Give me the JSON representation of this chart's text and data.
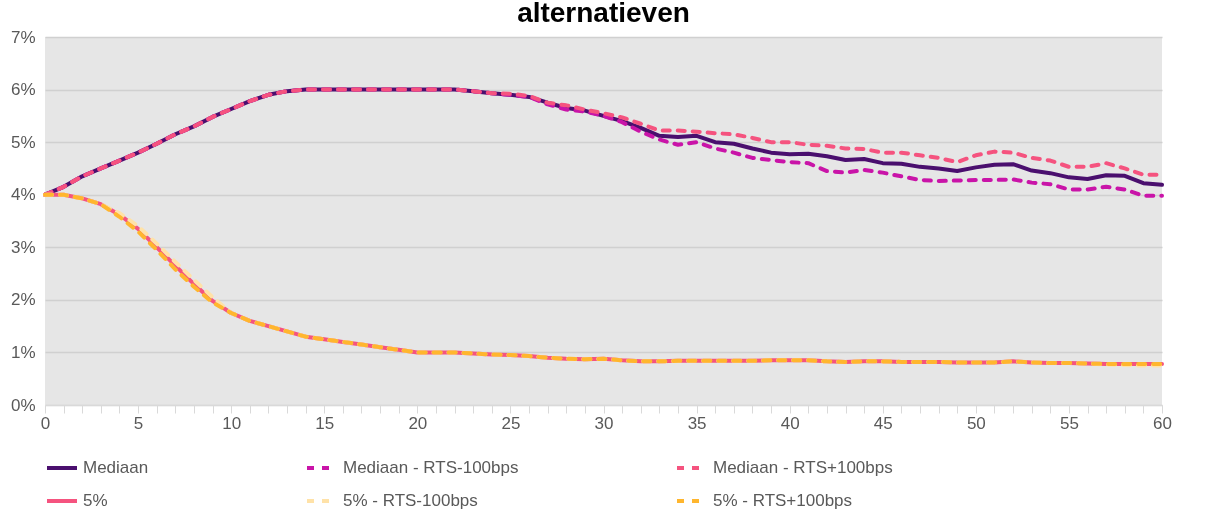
{
  "chart_data": {
    "type": "line",
    "title": "alternatieven",
    "x": [
      0,
      1,
      2,
      3,
      4,
      5,
      6,
      7,
      8,
      9,
      10,
      11,
      12,
      13,
      14,
      15,
      16,
      17,
      18,
      19,
      20,
      21,
      22,
      23,
      24,
      25,
      26,
      27,
      28,
      29,
      30,
      31,
      32,
      33,
      34,
      35,
      36,
      37,
      38,
      39,
      40,
      41,
      42,
      43,
      44,
      45,
      46,
      47,
      48,
      49,
      50,
      51,
      52,
      53,
      54,
      55,
      56,
      57,
      58,
      59,
      60
    ],
    "series": [
      {
        "name": "Mediaan",
        "color": "#4a0f6e",
        "line_style": "solid",
        "values": [
          4.0,
          4.15,
          4.35,
          4.5,
          4.65,
          4.8,
          4.97,
          5.15,
          5.3,
          5.48,
          5.63,
          5.78,
          5.9,
          5.97,
          6.0,
          6.0,
          6.0,
          6.0,
          6.0,
          6.0,
          6.0,
          6.0,
          6.0,
          5.97,
          5.93,
          5.9,
          5.86,
          5.75,
          5.65,
          5.6,
          5.5,
          5.4,
          5.27,
          5.12,
          5.1,
          5.12,
          5.0,
          4.97,
          4.88,
          4.8,
          4.77,
          4.78,
          4.73,
          4.66,
          4.68,
          4.6,
          4.59,
          4.53,
          4.5,
          4.45,
          4.52,
          4.57,
          4.58,
          4.46,
          4.41,
          4.33,
          4.3,
          4.37,
          4.36,
          4.22,
          4.19
        ]
      },
      {
        "name": "Mediaan - RTS-100bps",
        "color": "#c914a8",
        "line_style": "dashed",
        "values": [
          4.0,
          4.15,
          4.35,
          4.5,
          4.65,
          4.8,
          4.97,
          5.15,
          5.3,
          5.48,
          5.63,
          5.78,
          5.9,
          5.97,
          6.0,
          6.0,
          6.0,
          6.0,
          6.0,
          6.0,
          6.0,
          6.0,
          6.0,
          5.97,
          5.93,
          5.9,
          5.86,
          5.72,
          5.62,
          5.58,
          5.5,
          5.38,
          5.2,
          5.05,
          4.95,
          5.0,
          4.88,
          4.8,
          4.7,
          4.66,
          4.62,
          4.6,
          4.45,
          4.42,
          4.47,
          4.42,
          4.35,
          4.28,
          4.26,
          4.27,
          4.28,
          4.28,
          4.29,
          4.23,
          4.2,
          4.1,
          4.1,
          4.15,
          4.1,
          3.98,
          3.98
        ]
      },
      {
        "name": "Mediaan - RTS+100bps",
        "color": "#f5537f",
        "line_style": "dashed",
        "values": [
          4.0,
          4.15,
          4.35,
          4.5,
          4.65,
          4.8,
          4.97,
          5.15,
          5.3,
          5.48,
          5.63,
          5.78,
          5.9,
          5.97,
          6.0,
          6.0,
          6.0,
          6.0,
          6.0,
          6.0,
          6.0,
          6.0,
          6.0,
          5.97,
          5.93,
          5.92,
          5.88,
          5.75,
          5.7,
          5.62,
          5.55,
          5.47,
          5.35,
          5.22,
          5.22,
          5.2,
          5.17,
          5.15,
          5.08,
          5.0,
          5.0,
          4.95,
          4.93,
          4.88,
          4.87,
          4.8,
          4.8,
          4.75,
          4.7,
          4.62,
          4.75,
          4.82,
          4.8,
          4.7,
          4.65,
          4.53,
          4.53,
          4.6,
          4.5,
          4.38,
          4.38
        ]
      },
      {
        "name": "5%",
        "color": "#f5537f",
        "line_style": "solid",
        "values": [
          4.0,
          4.0,
          3.93,
          3.82,
          3.62,
          3.35,
          3.0,
          2.65,
          2.3,
          1.98,
          1.75,
          1.6,
          1.5,
          1.4,
          1.3,
          1.25,
          1.2,
          1.15,
          1.1,
          1.05,
          1.0,
          1.0,
          1.0,
          0.98,
          0.96,
          0.95,
          0.93,
          0.9,
          0.88,
          0.87,
          0.88,
          0.85,
          0.83,
          0.83,
          0.84,
          0.84,
          0.84,
          0.84,
          0.84,
          0.85,
          0.85,
          0.85,
          0.83,
          0.82,
          0.83,
          0.83,
          0.82,
          0.82,
          0.82,
          0.81,
          0.81,
          0.81,
          0.83,
          0.81,
          0.8,
          0.8,
          0.79,
          0.78,
          0.78,
          0.78,
          0.78
        ]
      },
      {
        "name": "5% - RTS-100bps",
        "color": "#ffe2a8",
        "line_style": "dashed",
        "values": [
          4.0,
          4.0,
          3.93,
          3.82,
          3.65,
          3.4,
          3.07,
          2.72,
          2.38,
          2.05,
          1.75,
          1.6,
          1.5,
          1.4,
          1.3,
          1.25,
          1.2,
          1.15,
          1.1,
          1.05,
          1.0,
          1.0,
          1.0,
          0.98,
          0.96,
          0.95,
          0.93,
          0.9,
          0.88,
          0.87,
          0.88,
          0.85,
          0.83,
          0.83,
          0.84,
          0.84,
          0.84,
          0.84,
          0.84,
          0.85,
          0.85,
          0.85,
          0.83,
          0.82,
          0.83,
          0.83,
          0.82,
          0.82,
          0.82,
          0.81,
          0.81,
          0.81,
          0.83,
          0.81,
          0.8,
          0.8,
          0.79,
          0.77,
          0.76,
          0.75,
          0.75
        ]
      },
      {
        "name": "5% - RTS+100bps",
        "color": "#ffb62e",
        "line_style": "dashed",
        "values": [
          4.0,
          4.0,
          3.93,
          3.82,
          3.58,
          3.3,
          2.95,
          2.58,
          2.25,
          1.95,
          1.75,
          1.6,
          1.5,
          1.4,
          1.3,
          1.25,
          1.2,
          1.15,
          1.1,
          1.05,
          1.0,
          1.0,
          1.0,
          0.98,
          0.96,
          0.95,
          0.93,
          0.9,
          0.88,
          0.87,
          0.88,
          0.85,
          0.83,
          0.83,
          0.84,
          0.84,
          0.84,
          0.84,
          0.84,
          0.85,
          0.85,
          0.85,
          0.83,
          0.82,
          0.83,
          0.83,
          0.82,
          0.82,
          0.82,
          0.81,
          0.81,
          0.81,
          0.83,
          0.81,
          0.8,
          0.8,
          0.79,
          0.78,
          0.78,
          0.78,
          0.78
        ]
      }
    ],
    "xlim": [
      0,
      60
    ],
    "xticks": [
      0,
      {
        "value": 1,
        "label": null
      },
      {
        "value": 2,
        "label": null
      },
      {
        "value": 3,
        "label": null
      },
      {
        "value": 4,
        "label": null
      },
      5,
      {
        "value": 6,
        "label": null
      },
      {
        "value": 7,
        "label": null
      },
      {
        "value": 8,
        "label": null
      },
      {
        "value": 9,
        "label": null
      },
      10,
      {
        "value": 11,
        "label": null
      },
      {
        "value": 12,
        "label": null
      },
      {
        "value": 13,
        "label": null
      },
      {
        "value": 14,
        "label": null
      },
      15,
      {
        "value": 16,
        "label": null
      },
      {
        "value": 17,
        "label": null
      },
      {
        "value": 18,
        "label": null
      },
      {
        "value": 19,
        "label": null
      },
      20,
      {
        "value": 21,
        "label": null
      },
      {
        "value": 22,
        "label": null
      },
      {
        "value": 23,
        "label": null
      },
      {
        "value": 24,
        "label": null
      },
      25,
      {
        "value": 26,
        "label": null
      },
      {
        "value": 27,
        "label": null
      },
      {
        "value": 28,
        "label": null
      },
      {
        "value": 29,
        "label": null
      },
      30,
      {
        "value": 31,
        "label": null
      },
      {
        "value": 32,
        "label": null
      },
      {
        "value": 33,
        "label": null
      },
      {
        "value": 34,
        "label": null
      },
      35,
      {
        "value": 36,
        "label": null
      },
      {
        "value": 37,
        "label": null
      },
      {
        "value": 38,
        "label": null
      },
      {
        "value": 39,
        "label": null
      },
      40,
      {
        "value": 41,
        "label": null
      },
      {
        "value": 42,
        "label": null
      },
      {
        "value": 43,
        "label": null
      },
      {
        "value": 44,
        "label": null
      },
      45,
      {
        "value": 46,
        "label": null
      },
      {
        "value": 47,
        "label": null
      },
      {
        "value": 48,
        "label": null
      },
      {
        "value": 49,
        "label": null
      },
      50,
      {
        "value": 51,
        "label": null
      },
      {
        "value": 52,
        "label": null
      },
      {
        "value": 53,
        "label": null
      },
      {
        "value": 54,
        "label": null
      },
      55,
      {
        "value": 56,
        "label": null
      },
      {
        "value": 57,
        "label": null
      },
      {
        "value": 58,
        "label": null
      },
      {
        "value": 59,
        "label": null
      },
      60
    ],
    "ylim": [
      0,
      7
    ],
    "yticks": [
      {
        "value": 0,
        "label": "0%"
      },
      {
        "value": 1,
        "label": "1%"
      },
      {
        "value": 2,
        "label": "2%"
      },
      {
        "value": 3,
        "label": "3%"
      },
      {
        "value": 4,
        "label": "4%"
      },
      {
        "value": 5,
        "label": "5%"
      },
      {
        "value": 6,
        "label": "6%"
      },
      {
        "value": 7,
        "label": "7%"
      }
    ],
    "grid": "y",
    "legend": "bottom"
  }
}
